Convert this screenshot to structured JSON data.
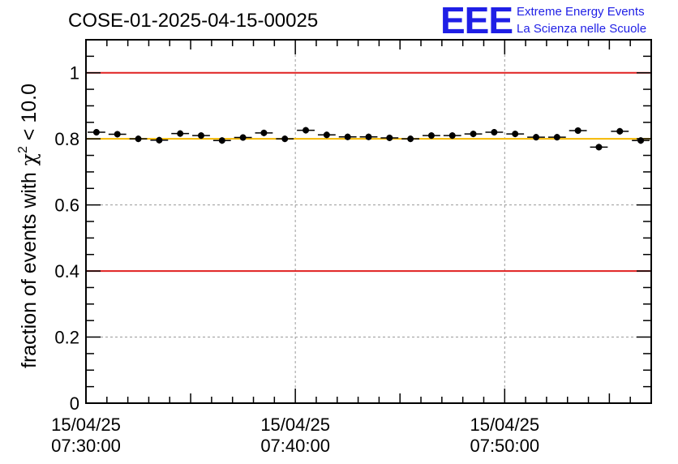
{
  "title": "COSE-01-2025-04-15-00025",
  "logo": {
    "mark": "EEE",
    "line1": "Extreme Energy Events",
    "line2": "La Scienza nelle Scuole",
    "color": "#1f1fe6"
  },
  "chart_data": {
    "type": "scatter",
    "title": "COSE-01-2025-04-15-00025",
    "ylabel": "fraction of events with",
    "ylabel_math": "χ",
    "ylabel_sup": "2",
    "ylabel_tail": " < 10.0",
    "xlabel": "",
    "xlim_minutes": [
      0,
      27
    ],
    "ylim": [
      0,
      1.1
    ],
    "y_ticks": [
      {
        "value": 0,
        "label": "0"
      },
      {
        "value": 0.2,
        "label": "0.2"
      },
      {
        "value": 0.4,
        "label": "0.4"
      },
      {
        "value": 0.6,
        "label": "0.6"
      },
      {
        "value": 0.8,
        "label": "0.8"
      },
      {
        "value": 1.0,
        "label": "1"
      }
    ],
    "x_ticks": [
      {
        "minute": 0,
        "date": "15/04/25",
        "time": "07:30:00"
      },
      {
        "minute": 10,
        "date": "15/04/25",
        "time": "07:40:00"
      },
      {
        "minute": 20,
        "date": "15/04/25",
        "time": "07:50:00"
      }
    ],
    "x_start_time": "07:30:00",
    "x_bin_width_minutes": 1,
    "grid": true,
    "reference_lines": [
      {
        "y": 1.0,
        "color": "#e02020"
      },
      {
        "y": 0.4,
        "color": "#e02020"
      },
      {
        "y": 0.8,
        "color": "#f5b800"
      }
    ],
    "points": [
      {
        "x": 0.5,
        "y": 0.82
      },
      {
        "x": 1.5,
        "y": 0.814
      },
      {
        "x": 2.5,
        "y": 0.8
      },
      {
        "x": 3.5,
        "y": 0.796
      },
      {
        "x": 4.5,
        "y": 0.816
      },
      {
        "x": 5.5,
        "y": 0.81
      },
      {
        "x": 6.5,
        "y": 0.795
      },
      {
        "x": 7.5,
        "y": 0.804
      },
      {
        "x": 8.5,
        "y": 0.818
      },
      {
        "x": 9.5,
        "y": 0.8
      },
      {
        "x": 10.5,
        "y": 0.826
      },
      {
        "x": 11.5,
        "y": 0.812
      },
      {
        "x": 12.5,
        "y": 0.806
      },
      {
        "x": 13.5,
        "y": 0.806
      },
      {
        "x": 14.5,
        "y": 0.803
      },
      {
        "x": 15.5,
        "y": 0.8
      },
      {
        "x": 16.5,
        "y": 0.81
      },
      {
        "x": 17.5,
        "y": 0.81
      },
      {
        "x": 18.5,
        "y": 0.815
      },
      {
        "x": 19.5,
        "y": 0.82
      },
      {
        "x": 20.5,
        "y": 0.815
      },
      {
        "x": 21.5,
        "y": 0.805
      },
      {
        "x": 22.5,
        "y": 0.805
      },
      {
        "x": 23.5,
        "y": 0.825
      },
      {
        "x": 24.5,
        "y": 0.775
      },
      {
        "x": 25.5,
        "y": 0.823
      },
      {
        "x": 26.5,
        "y": 0.795
      }
    ]
  }
}
